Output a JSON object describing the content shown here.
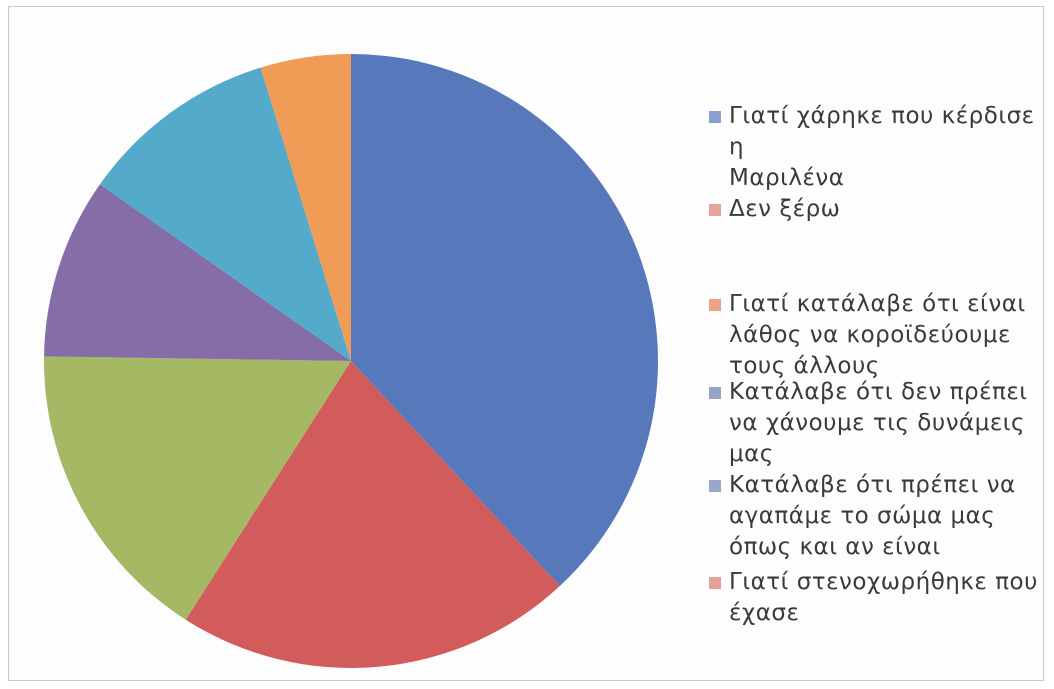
{
  "chart_data": {
    "type": "pie",
    "title": "",
    "slices": [
      {
        "label": "Γιατί χάρηκε που κέρδισε η Μαριλένα",
        "value": 40,
        "color": "#4f71b8"
      },
      {
        "label": "Γιατί στενοχωρήθηκε που έχασε",
        "value": 22,
        "color": "#cf5352"
      },
      {
        "label": "",
        "value": 17,
        "color": "#a0b45c"
      },
      {
        "label": "",
        "value": 10,
        "color": "#7e65a2"
      },
      {
        "label": "",
        "value": 11,
        "color": "#4aa5c7"
      },
      {
        "label": "",
        "value": 5,
        "color": "#ef964d"
      }
    ],
    "legend": {
      "position": "right",
      "entries": [
        {
          "label": "Γιατί χάρηκε που κέρδισε η\nΜαριλένα",
          "color": "#8a9fcb"
        },
        {
          "label": "Δεν ξέρω",
          "color": "#e4a49a"
        },
        {
          "label": "Γιατί κατάλαβε ότι είναι\nλάθος να κοροϊδεύουμε\nτους άλλους",
          "color": "#eba286"
        },
        {
          "label": "Κατάλαβε ότι δεν πρέπει\nνα χάνουμε τις δυνάμεις\nμας",
          "color": "#94a4c6"
        },
        {
          "label": "Κατάλαβε ότι πρέπει να\nαγαπάμε το σώμα μας\nόπως και αν είναι",
          "color": "#98a8ca"
        },
        {
          "label": "Γιατί στενοχωρήθηκε που\nέχασε",
          "color": "#e2a29a"
        }
      ]
    }
  }
}
